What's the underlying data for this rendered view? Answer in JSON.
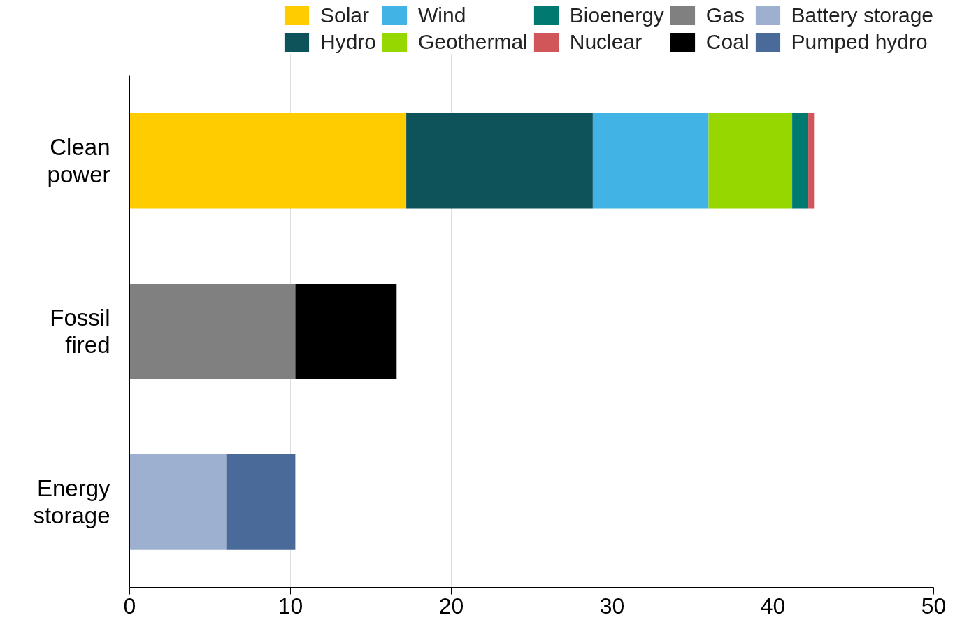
{
  "chart_data": {
    "type": "bar",
    "orientation": "horizontal",
    "stacked": true,
    "categories": [
      "Clean power",
      "Fossil fired",
      "Energy storage"
    ],
    "series": [
      {
        "name": "Solar",
        "color": "#ffcc00",
        "values": [
          17.2,
          null,
          null
        ]
      },
      {
        "name": "Hydro",
        "color": "#0e535a",
        "values": [
          11.6,
          null,
          null
        ]
      },
      {
        "name": "Wind",
        "color": "#41b3e4",
        "values": [
          7.2,
          null,
          null
        ]
      },
      {
        "name": "Geothermal",
        "color": "#96d700",
        "values": [
          5.2,
          null,
          null
        ]
      },
      {
        "name": "Bioenergy",
        "color": "#007a70",
        "values": [
          1.0,
          null,
          null
        ]
      },
      {
        "name": "Nuclear",
        "color": "#d0565a",
        "values": [
          0.4,
          null,
          null
        ]
      },
      {
        "name": "Gas",
        "color": "#808080",
        "values": [
          null,
          10.3,
          null
        ]
      },
      {
        "name": "Coal",
        "color": "#000000",
        "values": [
          null,
          6.3,
          null
        ]
      },
      {
        "name": "Battery storage",
        "color": "#9db0cf",
        "values": [
          null,
          null,
          6.0
        ]
      },
      {
        "name": "Pumped hydro",
        "color": "#4a6b9a",
        "values": [
          null,
          null,
          4.3
        ]
      }
    ],
    "xlim": [
      0,
      50
    ],
    "xticks": [
      0,
      10,
      20,
      30,
      40,
      50
    ],
    "grid": "x",
    "legend": "top"
  }
}
